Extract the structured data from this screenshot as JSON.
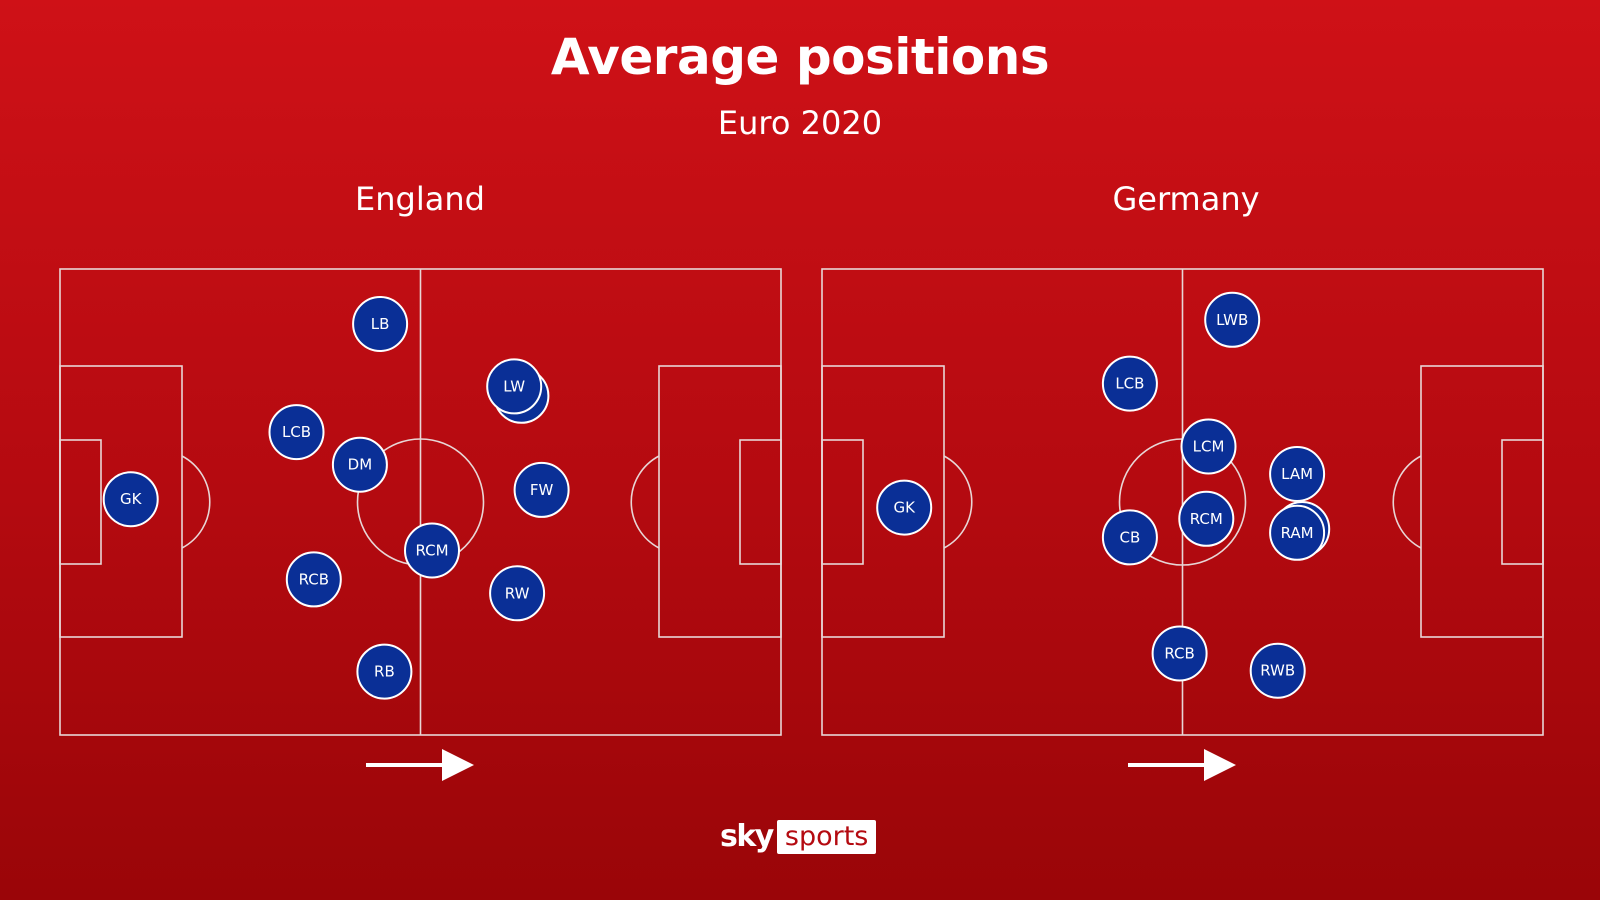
{
  "title": "Average positions",
  "subtitle": "Euro 2020",
  "colors": {
    "player_fill": "#0a2f96",
    "background": "#c00d13",
    "lines": "#e8d6d6"
  },
  "pitch_units": {
    "length": 100,
    "width": 100
  },
  "teams": [
    {
      "name": "England",
      "direction": "left-to-right",
      "players": [
        {
          "label": "GK",
          "x": 9.8,
          "y": 49.4
        },
        {
          "label": "LB",
          "x": 44.4,
          "y": 11.8
        },
        {
          "label": "LCB",
          "x": 32.8,
          "y": 35.0
        },
        {
          "label": "DM",
          "x": 41.6,
          "y": 42.0
        },
        {
          "label": "RCB",
          "x": 35.2,
          "y": 66.6
        },
        {
          "label": "RCM",
          "x": 51.6,
          "y": 60.4
        },
        {
          "label": "RB",
          "x": 45.0,
          "y": 86.4
        },
        {
          "label": "",
          "x": 64.0,
          "y": 27.2
        },
        {
          "label": "LW",
          "x": 63.0,
          "y": 25.2
        },
        {
          "label": "FW",
          "x": 66.8,
          "y": 47.4
        },
        {
          "label": "RW",
          "x": 63.4,
          "y": 69.6
        }
      ]
    },
    {
      "name": "Germany",
      "direction": "left-to-right",
      "players": [
        {
          "label": "GK",
          "x": 11.4,
          "y": 51.2
        },
        {
          "label": "LWB",
          "x": 56.9,
          "y": 10.9
        },
        {
          "label": "LCB",
          "x": 42.7,
          "y": 24.6
        },
        {
          "label": "LCM",
          "x": 53.6,
          "y": 38.1
        },
        {
          "label": "CB",
          "x": 42.7,
          "y": 57.6
        },
        {
          "label": "RCM",
          "x": 53.3,
          "y": 53.6
        },
        {
          "label": "LAM",
          "x": 65.9,
          "y": 44.0
        },
        {
          "label": "",
          "x": 66.6,
          "y": 55.8
        },
        {
          "label": "RAM",
          "x": 65.9,
          "y": 56.6
        },
        {
          "label": "RCB",
          "x": 49.6,
          "y": 82.5
        },
        {
          "label": "RWB",
          "x": 63.2,
          "y": 86.2
        }
      ]
    }
  ],
  "logo": {
    "sky": "sky",
    "sports": "sports"
  }
}
